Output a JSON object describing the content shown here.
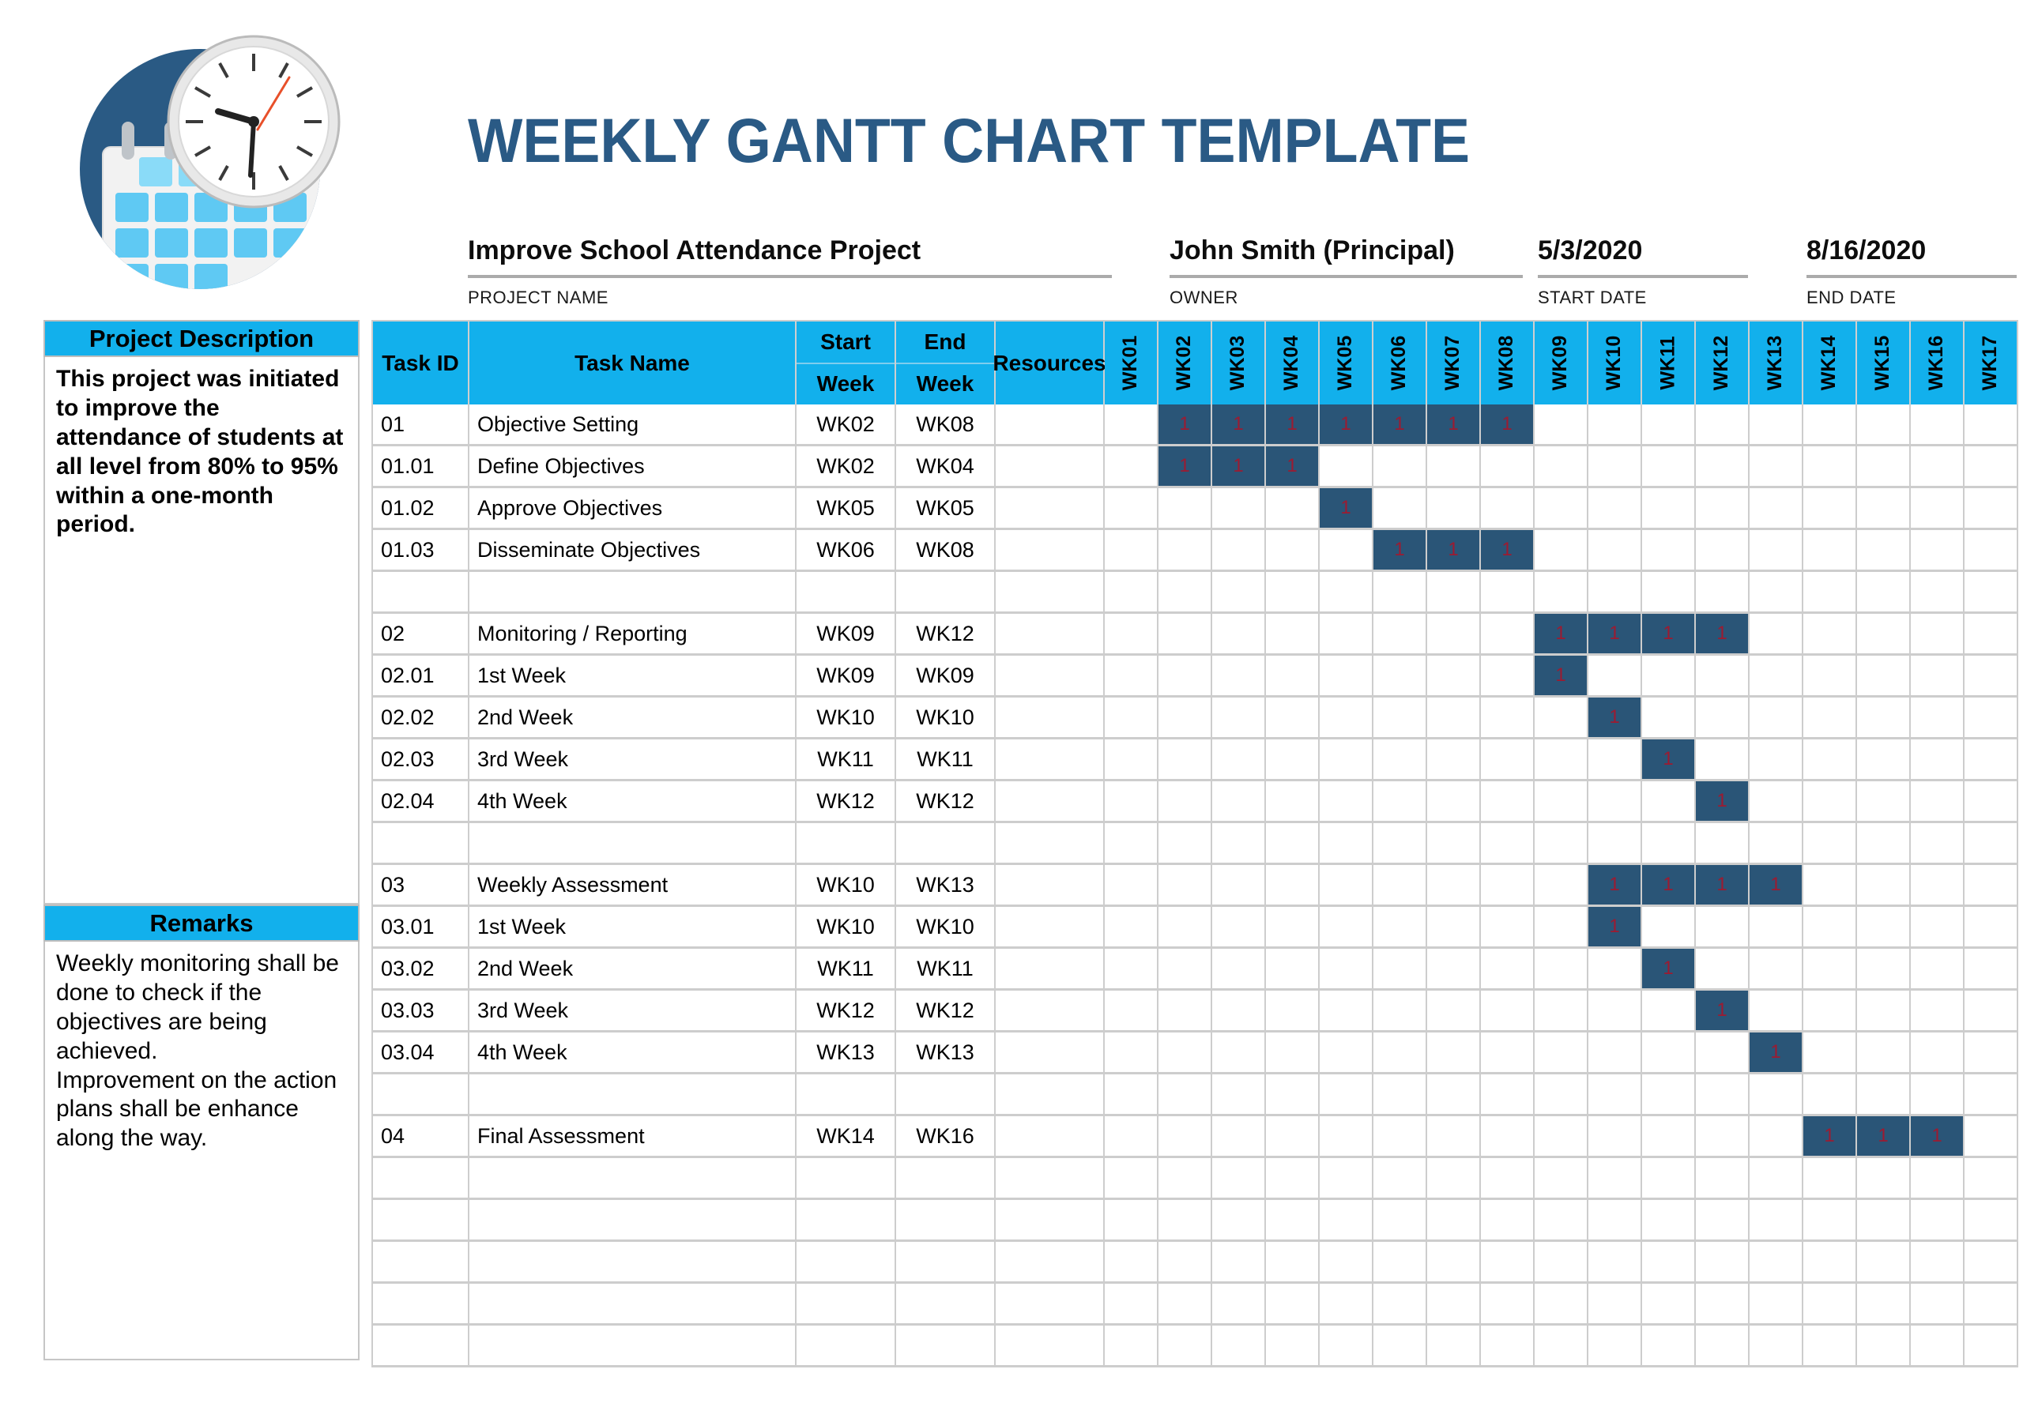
{
  "title": "WEEKLY GANTT CHART TEMPLATE",
  "colors": {
    "header_cyan": "#12B0EC",
    "bar_navy": "#2A5577",
    "bar_value_red": "#9C1B31",
    "title_navy": "#2A5A85",
    "grid_gray": "#CDCDCD",
    "logo_circle_navy": "#2A5A84",
    "logo_calendar_blue": "#5FC9F3"
  },
  "meta": {
    "project_name": {
      "value": "Improve School Attendance Project",
      "label": "PROJECT NAME"
    },
    "owner": {
      "value": "John Smith (Principal)",
      "label": "OWNER"
    },
    "start_date": {
      "value": "5/3/2020",
      "label": "START DATE"
    },
    "end_date": {
      "value": "8/16/2020",
      "label": "END DATE"
    }
  },
  "sidebar": {
    "description_title": "Project Description",
    "description_text": "This project was initiated to improve the attendance of students at all level from 80% to 95% within a one-month period.",
    "remarks_title": "Remarks",
    "remarks_text": "Weekly monitoring shall be done to check if the objectives are being achieved.\nImprovement on the action plans shall be enhance along the way.",
    "logo": "calendar-clock-logo"
  },
  "table": {
    "headers": {
      "task_id": "Task ID",
      "task_name": "Task Name",
      "start_top": "Start",
      "start_bottom": "Week",
      "end_top": "End",
      "end_bottom": "Week",
      "resources": "Resources"
    },
    "week_columns": [
      "WK01",
      "WK02",
      "WK03",
      "WK04",
      "WK05",
      "WK06",
      "WK07",
      "WK08",
      "WK09",
      "WK10",
      "WK11",
      "WK12",
      "WK13",
      "WK14",
      "WK15",
      "WK16",
      "WK17"
    ],
    "bar_cell_value": "1",
    "rows": [
      {
        "id": "01",
        "name": "Objective Setting",
        "start": "WK02",
        "end": "WK08",
        "resources": "",
        "bar": [
          2,
          8
        ]
      },
      {
        "id": "01.01",
        "name": "Define Objectives",
        "start": "WK02",
        "end": "WK04",
        "resources": "",
        "bar": [
          2,
          4
        ]
      },
      {
        "id": "01.02",
        "name": "Approve Objectives",
        "start": "WK05",
        "end": "WK05",
        "resources": "",
        "bar": [
          5,
          5
        ]
      },
      {
        "id": "01.03",
        "name": "Disseminate Objectives",
        "start": "WK06",
        "end": "WK08",
        "resources": "",
        "bar": [
          6,
          8
        ]
      },
      {
        "id": "",
        "name": "",
        "start": "",
        "end": "",
        "resources": "",
        "bar": null
      },
      {
        "id": "02",
        "name": "Monitoring / Reporting",
        "start": "WK09",
        "end": "WK12",
        "resources": "",
        "bar": [
          9,
          12
        ]
      },
      {
        "id": "02.01",
        "name": "1st Week",
        "start": "WK09",
        "end": "WK09",
        "resources": "",
        "bar": [
          9,
          9
        ]
      },
      {
        "id": "02.02",
        "name": "2nd Week",
        "start": "WK10",
        "end": "WK10",
        "resources": "",
        "bar": [
          10,
          10
        ]
      },
      {
        "id": "02.03",
        "name": "3rd Week",
        "start": "WK11",
        "end": "WK11",
        "resources": "",
        "bar": [
          11,
          11
        ]
      },
      {
        "id": "02.04",
        "name": "4th Week",
        "start": "WK12",
        "end": "WK12",
        "resources": "",
        "bar": [
          12,
          12
        ]
      },
      {
        "id": "",
        "name": "",
        "start": "",
        "end": "",
        "resources": "",
        "bar": null
      },
      {
        "id": "03",
        "name": "Weekly Assessment",
        "start": "WK10",
        "end": "WK13",
        "resources": "",
        "bar": [
          10,
          13
        ]
      },
      {
        "id": "03.01",
        "name": "1st Week",
        "start": "WK10",
        "end": "WK10",
        "resources": "",
        "bar": [
          10,
          10
        ]
      },
      {
        "id": "03.02",
        "name": "2nd Week",
        "start": "WK11",
        "end": "WK11",
        "resources": "",
        "bar": [
          11,
          11
        ]
      },
      {
        "id": "03.03",
        "name": "3rd Week",
        "start": "WK12",
        "end": "WK12",
        "resources": "",
        "bar": [
          12,
          12
        ]
      },
      {
        "id": "03.04",
        "name": "4th Week",
        "start": "WK13",
        "end": "WK13",
        "resources": "",
        "bar": [
          13,
          13
        ]
      },
      {
        "id": "",
        "name": "",
        "start": "",
        "end": "",
        "resources": "",
        "bar": null
      },
      {
        "id": "04",
        "name": "Final Assessment",
        "start": "WK14",
        "end": "WK16",
        "resources": "",
        "bar": [
          14,
          16
        ]
      },
      {
        "id": "",
        "name": "",
        "start": "",
        "end": "",
        "resources": "",
        "bar": null
      },
      {
        "id": "",
        "name": "",
        "start": "",
        "end": "",
        "resources": "",
        "bar": null
      },
      {
        "id": "",
        "name": "",
        "start": "",
        "end": "",
        "resources": "",
        "bar": null
      },
      {
        "id": "",
        "name": "",
        "start": "",
        "end": "",
        "resources": "",
        "bar": null
      },
      {
        "id": "",
        "name": "",
        "start": "",
        "end": "",
        "resources": "",
        "bar": null
      }
    ]
  },
  "chart_data": {
    "type": "table",
    "subtype": "gantt",
    "title": "WEEKLY GANTT CHART TEMPLATE",
    "x_axis_weeks": [
      "WK01",
      "WK02",
      "WK03",
      "WK04",
      "WK05",
      "WK06",
      "WK07",
      "WK08",
      "WK09",
      "WK10",
      "WK11",
      "WK12",
      "WK13",
      "WK14",
      "WK15",
      "WK16",
      "WK17"
    ],
    "cell_value_in_bars": 1,
    "tasks": [
      {
        "task_id": "01",
        "task_name": "Objective Setting",
        "start_week": "WK02",
        "end_week": "WK08",
        "week_span": [
          2,
          8
        ]
      },
      {
        "task_id": "01.01",
        "task_name": "Define Objectives",
        "start_week": "WK02",
        "end_week": "WK04",
        "week_span": [
          2,
          4
        ]
      },
      {
        "task_id": "01.02",
        "task_name": "Approve Objectives",
        "start_week": "WK05",
        "end_week": "WK05",
        "week_span": [
          5,
          5
        ]
      },
      {
        "task_id": "01.03",
        "task_name": "Disseminate Objectives",
        "start_week": "WK06",
        "end_week": "WK08",
        "week_span": [
          6,
          8
        ]
      },
      {
        "task_id": "02",
        "task_name": "Monitoring / Reporting",
        "start_week": "WK09",
        "end_week": "WK12",
        "week_span": [
          9,
          12
        ]
      },
      {
        "task_id": "02.01",
        "task_name": "1st Week",
        "start_week": "WK09",
        "end_week": "WK09",
        "week_span": [
          9,
          9
        ]
      },
      {
        "task_id": "02.02",
        "task_name": "2nd Week",
        "start_week": "WK10",
        "end_week": "WK10",
        "week_span": [
          10,
          10
        ]
      },
      {
        "task_id": "02.03",
        "task_name": "3rd Week",
        "start_week": "WK11",
        "end_week": "WK11",
        "week_span": [
          11,
          11
        ]
      },
      {
        "task_id": "02.04",
        "task_name": "4th Week",
        "start_week": "WK12",
        "end_week": "WK12",
        "week_span": [
          12,
          12
        ]
      },
      {
        "task_id": "03",
        "task_name": "Weekly Assessment",
        "start_week": "WK10",
        "end_week": "WK13",
        "week_span": [
          10,
          13
        ]
      },
      {
        "task_id": "03.01",
        "task_name": "1st Week",
        "start_week": "WK10",
        "end_week": "WK10",
        "week_span": [
          10,
          10
        ]
      },
      {
        "task_id": "03.02",
        "task_name": "2nd Week",
        "start_week": "WK11",
        "end_week": "WK11",
        "week_span": [
          11,
          11
        ]
      },
      {
        "task_id": "03.03",
        "task_name": "3rd Week",
        "start_week": "WK12",
        "end_week": "WK12",
        "week_span": [
          12,
          12
        ]
      },
      {
        "task_id": "03.04",
        "task_name": "4th Week",
        "start_week": "WK13",
        "end_week": "WK13",
        "week_span": [
          13,
          13
        ]
      },
      {
        "task_id": "04",
        "task_name": "Final Assessment",
        "start_week": "WK14",
        "end_week": "WK16",
        "week_span": [
          14,
          16
        ]
      }
    ]
  }
}
